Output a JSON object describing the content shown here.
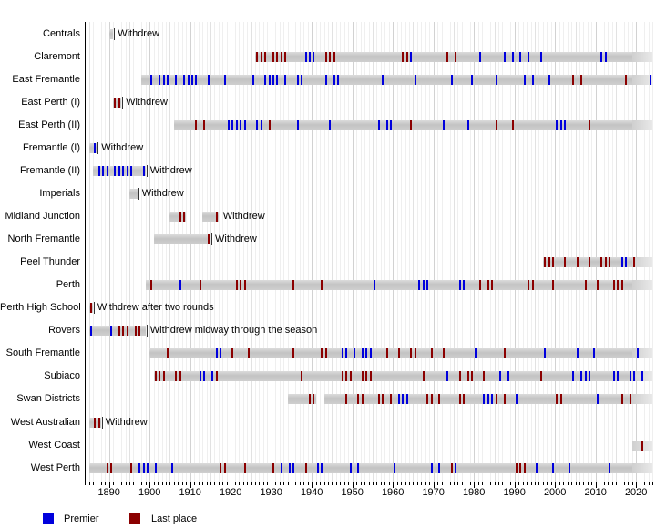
{
  "chart_data": {
    "type": "timeline",
    "title": "",
    "x_axis": {
      "year_min": 1884,
      "year_max": 2024,
      "decade_tick_labels": [
        "1890",
        "1900",
        "1910",
        "1920",
        "1930",
        "1940",
        "1950",
        "1960",
        "1970",
        "1980",
        "1990",
        "2000",
        "2010",
        "2020"
      ],
      "grid": true
    },
    "legend": {
      "position": "bottom-left",
      "premier_label": "Premier",
      "last_place_label": "Last place"
    },
    "colors": {
      "premier": "#0000dd",
      "last_place": "#8b0000",
      "bar": "#c9c9c9",
      "grid_year": "#efefef",
      "grid_half_decade": "#e2e2e2",
      "grid_decade": "#d2d2d2",
      "axis": "#000000"
    },
    "rows": [
      {
        "label": "Centrals",
        "segments": [
          [
            1890,
            1890
          ]
        ],
        "premiers": [],
        "last_place": [],
        "note": "Withdrew"
      },
      {
        "label": "Claremont",
        "segments": [
          [
            1926,
            null
          ]
        ],
        "premiers": [
          1938,
          1939,
          1940,
          1964,
          1981,
          1987,
          1989,
          1991,
          1993,
          1996,
          2011,
          2012
        ],
        "last_place": [
          1926,
          1927,
          1928,
          1930,
          1931,
          1932,
          1933,
          1943,
          1944,
          1945,
          1962,
          1963,
          1973,
          1975
        ],
        "note": ""
      },
      {
        "label": "East Fremantle",
        "segments": [
          [
            1898,
            null
          ]
        ],
        "premiers": [
          1900,
          1902,
          1903,
          1904,
          1906,
          1908,
          1909,
          1910,
          1911,
          1914,
          1918,
          1925,
          1928,
          1929,
          1930,
          1931,
          1933,
          1936,
          1937,
          1943,
          1945,
          1946,
          1957,
          1965,
          1974,
          1979,
          1985,
          1992,
          1994,
          1998,
          2023
        ],
        "last_place": [
          2004,
          2006,
          2017
        ],
        "note": ""
      },
      {
        "label": "East Perth (I)",
        "segments": [
          [
            1891,
            1892
          ]
        ],
        "premiers": [],
        "last_place": [
          1891,
          1892
        ],
        "note": "Withdrew"
      },
      {
        "label": "East Perth (II)",
        "segments": [
          [
            1906,
            null
          ]
        ],
        "premiers": [
          1919,
          1920,
          1921,
          1922,
          1923,
          1926,
          1927,
          1936,
          1944,
          1956,
          1958,
          1959,
          1972,
          1978,
          2000,
          2001,
          2002
        ],
        "last_place": [
          1911,
          1913,
          1929,
          1964,
          1985,
          1989,
          2008
        ],
        "note": ""
      },
      {
        "label": "Fremantle (I)",
        "segments": [
          [
            1885,
            1886
          ]
        ],
        "premiers": [
          1886
        ],
        "last_place": [],
        "note": "Withdrew"
      },
      {
        "label": "Fremantle (II)",
        "segments": [
          [
            1886,
            1898
          ]
        ],
        "premiers": [
          1887,
          1888,
          1889,
          1891,
          1892,
          1893,
          1894,
          1895,
          1898
        ],
        "last_place": [],
        "note": "Withdrew"
      },
      {
        "label": "Imperials",
        "segments": [
          [
            1895,
            1896
          ]
        ],
        "premiers": [],
        "last_place": [],
        "note": "Withdrew"
      },
      {
        "label": "Midland Junction",
        "segments": [
          [
            1905,
            1908
          ],
          [
            1913,
            1916
          ]
        ],
        "premiers": [],
        "last_place": [
          1907,
          1908,
          1916
        ],
        "note": "Withdrew"
      },
      {
        "label": "North Fremantle",
        "segments": [
          [
            1901,
            1914
          ]
        ],
        "premiers": [],
        "last_place": [
          1914
        ],
        "note": "Withdrew"
      },
      {
        "label": "Peel Thunder",
        "segments": [
          [
            1997,
            null
          ]
        ],
        "premiers": [
          2016,
          2017
        ],
        "last_place": [
          1997,
          1998,
          1999,
          2002,
          2005,
          2008,
          2011,
          2012,
          2013,
          2019
        ],
        "note": ""
      },
      {
        "label": "Perth",
        "segments": [
          [
            1899,
            null
          ]
        ],
        "premiers": [
          1907,
          1955,
          1966,
          1967,
          1968,
          1976,
          1977
        ],
        "last_place": [
          1900,
          1912,
          1921,
          1922,
          1923,
          1935,
          1942,
          1981,
          1983,
          1984,
          1993,
          1994,
          1999,
          2007,
          2010,
          2014,
          2015,
          2016
        ],
        "note": ""
      },
      {
        "label": "Perth High School",
        "segments": [
          [
            1885,
            1885
          ]
        ],
        "premiers": [],
        "last_place": [
          1885
        ],
        "note": "Withdrew after two rounds"
      },
      {
        "label": "Rovers",
        "segments": [
          [
            1885,
            1898
          ]
        ],
        "premiers": [
          1885,
          1890
        ],
        "last_place": [
          1892,
          1893,
          1894,
          1896,
          1897
        ],
        "note": "Withdrew midway through the season"
      },
      {
        "label": "South Fremantle",
        "segments": [
          [
            1900,
            null
          ]
        ],
        "premiers": [
          1916,
          1917,
          1947,
          1948,
          1950,
          1952,
          1953,
          1954,
          1980,
          1997,
          2005,
          2009,
          2020
        ],
        "last_place": [
          1904,
          1920,
          1924,
          1935,
          1942,
          1943,
          1958,
          1961,
          1964,
          1965,
          1969,
          1972,
          1987
        ],
        "note": ""
      },
      {
        "label": "Subiaco",
        "segments": [
          [
            1901,
            null
          ]
        ],
        "premiers": [
          1912,
          1913,
          1915,
          1973,
          1986,
          1988,
          2004,
          2006,
          2007,
          2008,
          2014,
          2015,
          2018,
          2019,
          2021
        ],
        "last_place": [
          1901,
          1902,
          1903,
          1906,
          1907,
          1916,
          1937,
          1947,
          1948,
          1949,
          1952,
          1953,
          1954,
          1967,
          1976,
          1978,
          1979,
          1982,
          1996
        ],
        "note": ""
      },
      {
        "label": "Swan Districts",
        "segments": [
          [
            1934,
            1940
          ],
          [
            1943,
            null
          ]
        ],
        "premiers": [
          1961,
          1962,
          1963,
          1982,
          1983,
          1984,
          1990,
          2010
        ],
        "last_place": [
          1939,
          1940,
          1948,
          1951,
          1952,
          1956,
          1957,
          1959,
          1968,
          1969,
          1971,
          1976,
          1977,
          1985,
          1987,
          2000,
          2001,
          2016,
          2018
        ],
        "note": ""
      },
      {
        "label": "West Australian",
        "segments": [
          [
            1885,
            1887
          ]
        ],
        "premiers": [],
        "last_place": [
          1886,
          1887
        ],
        "note": "Withdrew"
      },
      {
        "label": "West Coast",
        "segments": [
          [
            2019,
            null
          ]
        ],
        "premiers": [],
        "last_place": [
          2021
        ],
        "note": ""
      },
      {
        "label": "West Perth",
        "segments": [
          [
            1885,
            null
          ]
        ],
        "premiers": [
          1897,
          1898,
          1899,
          1901,
          1905,
          1932,
          1934,
          1935,
          1941,
          1942,
          1949,
          1951,
          1960,
          1969,
          1971,
          1975,
          1995,
          1999,
          2003,
          2013
        ],
        "last_place": [
          1889,
          1890,
          1895,
          1917,
          1918,
          1923,
          1930,
          1938,
          1974,
          1990,
          1991,
          1992
        ],
        "note": ""
      }
    ]
  }
}
